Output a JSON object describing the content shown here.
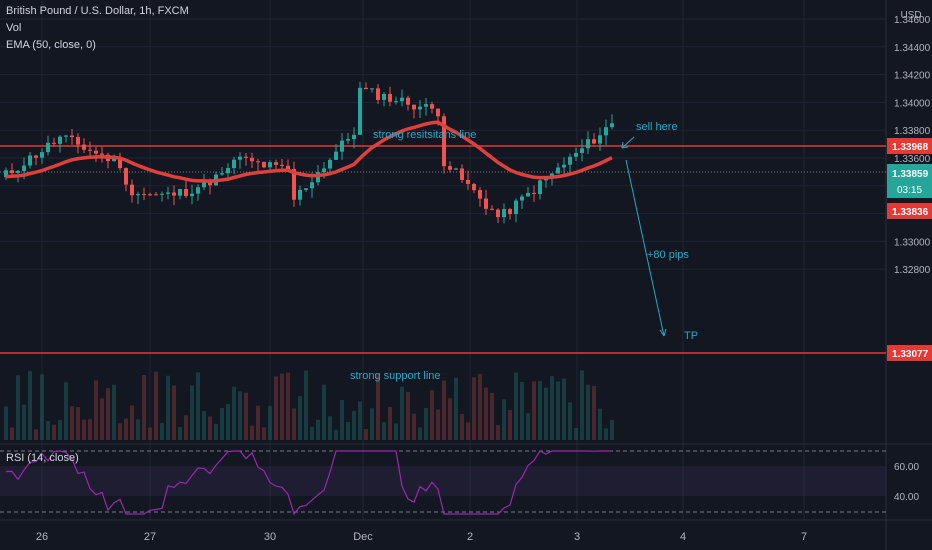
{
  "legend": {
    "title": "British Pound / U.S. Dollar, 1h, FXCM",
    "volume": "Vol",
    "ema": "EMA (50, close, 0)",
    "rsi": "RSI (14, close)"
  },
  "currency": "USD",
  "price_axis": {
    "labels": [
      "1.34600",
      "1.34400",
      "1.34200",
      "1.34000",
      "1.33800",
      "1.33600",
      "1.33400",
      "1.33200",
      "1.33000",
      "1.32800"
    ],
    "values": [
      1.346,
      1.344,
      1.342,
      1.34,
      1.338,
      1.336,
      1.334,
      1.332,
      1.33,
      1.328
    ]
  },
  "rsi_axis": {
    "labels": [
      "60.00",
      "40.00"
    ],
    "values": [
      60,
      40
    ]
  },
  "time_axis": {
    "labels": [
      "26",
      "27",
      "30",
      "Dec",
      "2",
      "3",
      "4",
      "7"
    ]
  },
  "price_tags": {
    "resistance": "1.33968",
    "current": "1.33859",
    "countdown": "03:15",
    "ema": "1.33836",
    "support": "1.33077"
  },
  "annotations": {
    "resistance_label": "strong resitsitans line",
    "support_label": "strong support line",
    "sell": "sell here",
    "pips": "+80 pips",
    "tp": "TP"
  },
  "colors": {
    "background": "#131722",
    "up": "#26a69a",
    "down": "#ef5350",
    "ema": "#e0403c",
    "level_line": "#e53935",
    "rsi": "#9c27b0",
    "annotation": "#26a8c7"
  },
  "chart_data": {
    "type": "candlestick",
    "symbol": "GBPUSD",
    "interval": "1h",
    "ylim": [
      1.3265,
      1.3465
    ],
    "levels": {
      "resistance": 1.33968,
      "support": 1.33077
    },
    "last_close": 1.33859,
    "ema_last": 1.33836,
    "rsi_band": [
      40,
      60
    ]
  }
}
